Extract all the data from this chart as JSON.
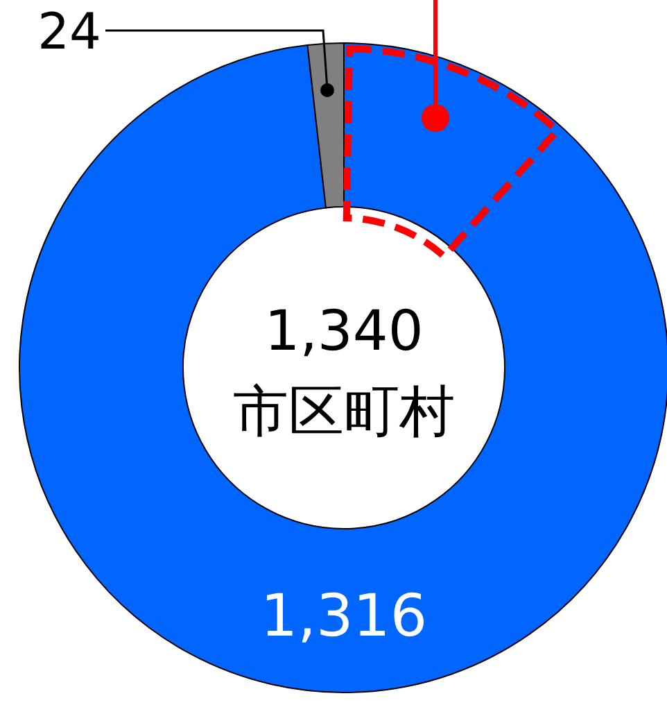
{
  "chart_data": {
    "type": "donut",
    "categories": [
      null,
      null
    ],
    "values": [
      1316,
      24
    ],
    "colors": [
      "#0066ff",
      "#808080"
    ],
    "value_labels": [
      "1,316",
      "24"
    ],
    "annotations": [
      "1,340",
      "市区町村"
    ]
  }
}
